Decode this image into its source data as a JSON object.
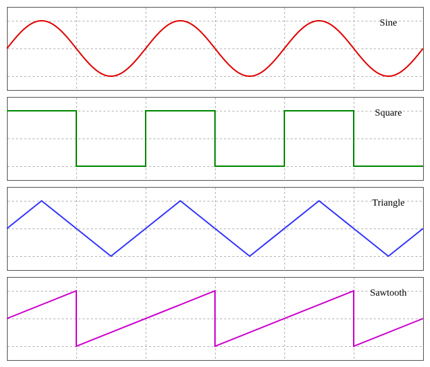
{
  "chart_data": [
    {
      "type": "line",
      "title": "Sine",
      "color": "#e00000",
      "grid": true,
      "xlim": [
        0,
        3
      ],
      "ylim": [
        -1.5,
        1.5
      ],
      "x": [
        0,
        0.125,
        0.25,
        0.375,
        0.5,
        0.625,
        0.75,
        0.875,
        1,
        1.125,
        1.25,
        1.375,
        1.5,
        1.625,
        1.75,
        1.875,
        2,
        2.125,
        2.25,
        2.375,
        2.5,
        2.625,
        2.75,
        2.875,
        3
      ],
      "y": [
        0,
        0.71,
        1,
        0.71,
        0,
        -0.71,
        -1,
        -0.71,
        0,
        0.71,
        1,
        0.71,
        0,
        -0.71,
        -1,
        -0.71,
        0,
        0.71,
        1,
        0.71,
        0,
        -0.71,
        -1,
        -0.71,
        0
      ]
    },
    {
      "type": "line",
      "title": "Square",
      "color": "#008800",
      "grid": true,
      "xlim": [
        0,
        3
      ],
      "ylim": [
        -1.5,
        1.5
      ],
      "x": [
        0,
        0.5,
        0.5,
        1,
        1,
        1.5,
        1.5,
        2,
        2,
        2.5,
        2.5,
        3
      ],
      "y": [
        1,
        1,
        -1,
        -1,
        1,
        1,
        -1,
        -1,
        1,
        1,
        -1,
        -1
      ]
    },
    {
      "type": "line",
      "title": "Triangle",
      "color": "#3333ff",
      "grid": true,
      "xlim": [
        0,
        3
      ],
      "ylim": [
        -1.5,
        1.5
      ],
      "x": [
        0,
        0.25,
        0.75,
        1.25,
        1.75,
        2.25,
        2.75,
        3
      ],
      "y": [
        0,
        1,
        -1,
        1,
        -1,
        1,
        -1,
        0
      ]
    },
    {
      "type": "line",
      "title": "Sawtooth",
      "color": "#cc00cc",
      "grid": true,
      "xlim": [
        0,
        3
      ],
      "ylim": [
        -1.5,
        1.5
      ],
      "x": [
        0,
        0.5,
        0.5,
        1.5,
        1.5,
        2.5,
        2.5,
        3
      ],
      "y": [
        0,
        1,
        -1,
        1,
        -1,
        1,
        -1,
        0
      ]
    }
  ]
}
